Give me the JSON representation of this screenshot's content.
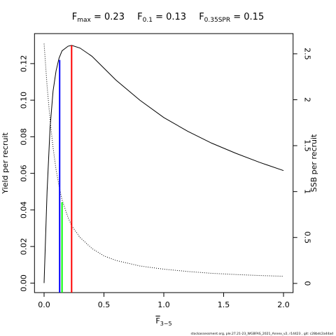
{
  "chart_data": {
    "type": "line",
    "title_parts": [
      {
        "symbol": "F",
        "subscript": "max",
        "rest": " = 0.23"
      },
      {
        "symbol": "F",
        "subscript": "0.1",
        "rest": " = 0.13"
      },
      {
        "symbol": "F",
        "subscript": "0.35SPR",
        "rest": " = 0.15"
      }
    ],
    "x_label": {
      "symbol": "F",
      "subscript": "3−5"
    },
    "y_label": "Yield per recruit",
    "y2_label": "SSB per recruit",
    "footer": "stockassessment.org, ple.27.21-23_WGBFAS_2021_Annex_v2, r14423 , git: c28bdc2a44ad",
    "x": [
      0,
      0.025,
      0.05,
      0.075,
      0.1,
      0.125,
      0.15,
      0.2,
      0.23,
      0.3,
      0.4,
      0.5,
      0.6,
      0.8,
      1.0,
      1.2,
      1.4,
      1.6,
      1.8,
      2.0
    ],
    "series": [
      {
        "name": "Yield per recruit",
        "color": "#000000",
        "dash": "solid",
        "values": [
          0,
          0.05,
          0.085,
          0.105,
          0.116,
          0.123,
          0.127,
          0.1295,
          0.13,
          0.1285,
          0.124,
          0.1175,
          0.111,
          0.1,
          0.0905,
          0.083,
          0.0765,
          0.071,
          0.066,
          0.0615
        ]
      },
      {
        "name": "SSB per recruit",
        "color": "#000000",
        "dash": "dotted",
        "axis": "y2",
        "values": [
          2.61,
          2.15,
          1.78,
          1.48,
          1.24,
          1.06,
          0.91,
          0.72,
          0.63,
          0.5,
          0.38,
          0.3,
          0.25,
          0.19,
          0.155,
          0.13,
          0.11,
          0.097,
          0.086,
          0.078
        ]
      }
    ],
    "reference_lines": [
      {
        "x": 0.23,
        "y": 0.13,
        "color": "#ff0000"
      },
      {
        "x": 0.13,
        "y": 0.122,
        "color": "#0000ff"
      },
      {
        "x": 0.15,
        "y": 0.884,
        "color": "#00ff00",
        "axis": "y2"
      }
    ],
    "xlim": [
      -0.08,
      2.08
    ],
    "xticks": [
      {
        "value": 0,
        "label": "0.0"
      },
      {
        "value": 0.5,
        "label": "0.5"
      },
      {
        "value": 1,
        "label": "1.0"
      },
      {
        "value": 1.5,
        "label": "1.5"
      },
      {
        "value": 2,
        "label": "2.0"
      }
    ],
    "ylim": [
      -0.0052,
      0.1364
    ],
    "yticks": [
      {
        "value": 0,
        "label": "0.00"
      },
      {
        "value": 0.02,
        "label": "0.02"
      },
      {
        "value": 0.04,
        "label": "0.04"
      },
      {
        "value": 0.06,
        "label": "0.06"
      },
      {
        "value": 0.08,
        "label": "0.08"
      },
      {
        "value": 0.1,
        "label": "0.10"
      },
      0.12
    ],
    "y2lim": [
      -0.1,
      2.72
    ],
    "y2ticks": [
      0,
      0.5,
      1,
      1.5,
      2,
      2.5
    ]
  }
}
